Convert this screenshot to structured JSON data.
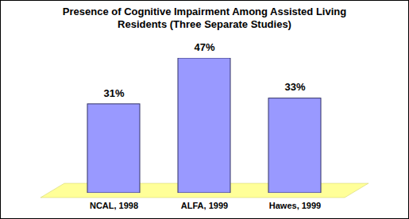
{
  "chart_data": {
    "type": "bar",
    "title": "Presence of Cognitive Impairment Among Assisted Living Residents (Three Separate Studies)",
    "categories": [
      "NCAL, 1998",
      "ALFA, 1999",
      "Hawes, 1999"
    ],
    "values": [
      31,
      47,
      33
    ],
    "value_labels": [
      "31%",
      "47%",
      "33%"
    ],
    "color": "#9999ff",
    "data_labels": true,
    "tick_labels": "x"
  }
}
